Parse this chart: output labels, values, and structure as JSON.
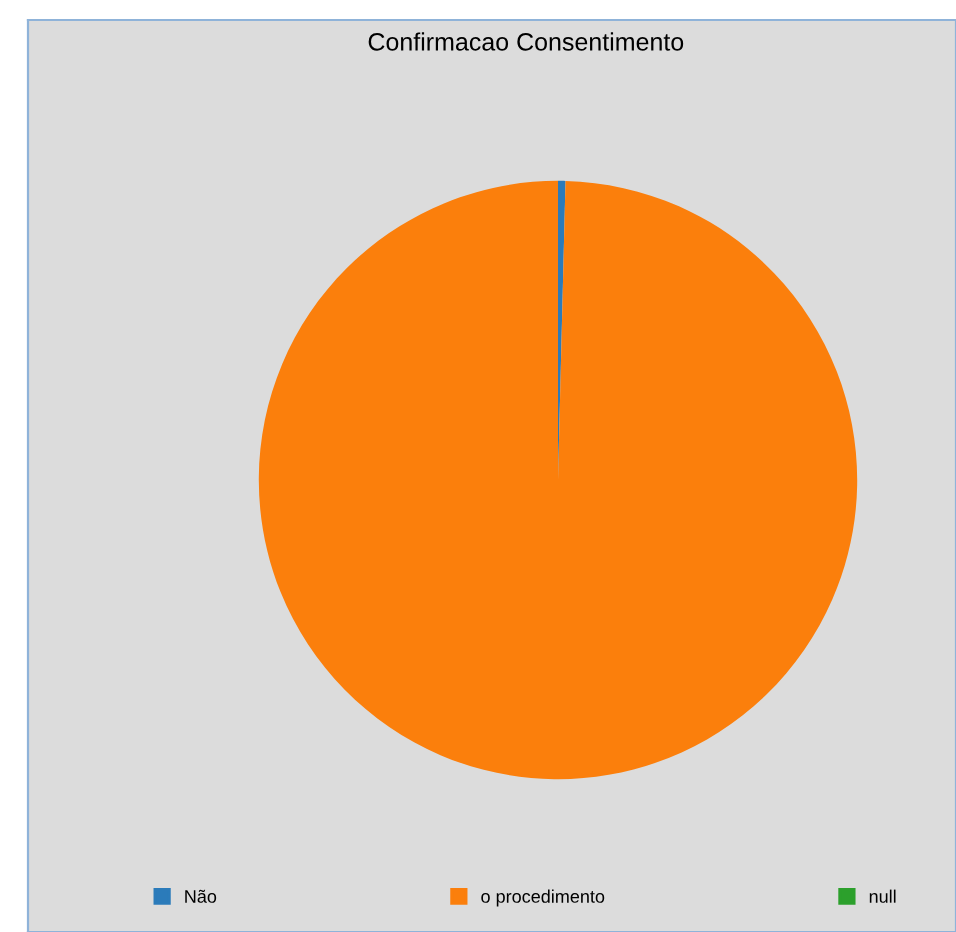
{
  "chart_data": {
    "type": "pie",
    "title": "Confirmacao Consentimento",
    "categories": [
      "Não",
      "o procedimento",
      "null"
    ],
    "values": [
      0.4,
      99.6,
      0
    ],
    "colors": [
      "#2b7bba",
      "#fb7f0c",
      "#2ca02c"
    ],
    "legend": "bottom"
  }
}
